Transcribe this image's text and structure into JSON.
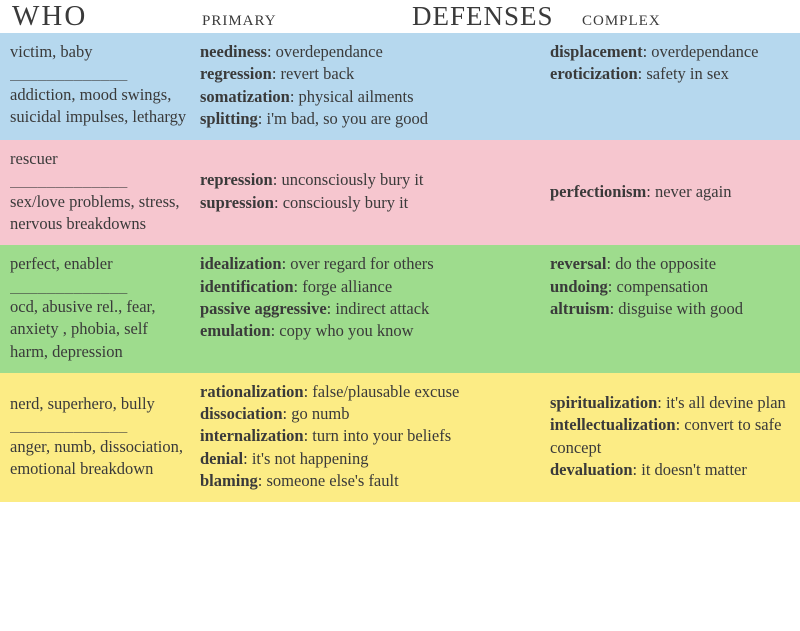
{
  "header": {
    "who": "WHO",
    "primary": "PRIMARY",
    "defenses": "DEFENSES",
    "complex": "COMPLEX"
  },
  "colors": {
    "row1": "#b6d8ee",
    "row2": "#f6c6cf",
    "row3": "#9edc8d",
    "row4": "#fcec85",
    "text": "#3a3a3a"
  },
  "separator": "_____________",
  "rows": [
    {
      "who_top": "victim, baby",
      "who_bot": "addiction, mood swings, suicidal impulses, lethargy",
      "primary": [
        {
          "term": "neediness",
          "desc": "overdependance"
        },
        {
          "term": "regression",
          "desc": " revert back"
        },
        {
          "term": "somatization",
          "desc": " physical ailments"
        },
        {
          "term": "splitting",
          "desc": " i'm bad, so you are good"
        }
      ],
      "complex": [
        {
          "term": "displacement",
          "desc": "overdependance"
        },
        {
          "term": "eroticization",
          "desc": " safety in sex"
        }
      ]
    },
    {
      "who_top": "rescuer",
      "who_bot": "sex/love problems, stress, nervous breakdowns",
      "primary": [
        {
          "term": "repression",
          "desc": "unconsciously bury it"
        },
        {
          "term": "supression",
          "desc": " consciously bury it"
        }
      ],
      "complex": [
        {
          "term": "perfectionism",
          "desc": "never again"
        }
      ]
    },
    {
      "who_top": "perfect, enabler",
      "who_bot": "ocd, abusive rel., fear, anxiety , phobia, self harm, depression",
      "primary": [
        {
          "term": "idealization",
          "desc": "over regard for others"
        },
        {
          "term": "identification",
          "desc": " forge alliance"
        },
        {
          "term": "passive aggressive",
          "desc": " indirect attack"
        },
        {
          "term": "emulation",
          "desc": " copy who you know"
        }
      ],
      "complex": [
        {
          "term": "reversal",
          "desc": "do the opposite"
        },
        {
          "term": "undoing",
          "desc": " compensation"
        },
        {
          "term": "altruism",
          "desc": " disguise with good"
        }
      ]
    },
    {
      "who_top": "nerd, superhero, bully",
      "who_bot": "anger, numb, dissociation, emotional breakdown",
      "primary": [
        {
          "term": "rationalization",
          "desc": "false/plausable excuse"
        },
        {
          "term": "dissociation",
          "desc": " go numb"
        },
        {
          "term": "internalization",
          "desc": " turn into your beliefs"
        },
        {
          "term": "denial",
          "desc": " it's not happening"
        },
        {
          "term": "blaming",
          "desc": " someone else's fault"
        }
      ],
      "complex": [
        {
          "term": "spiritualization",
          "desc": "it's all devine plan"
        },
        {
          "term": "intellectualization",
          "desc": " convert to safe concept"
        },
        {
          "term": "devaluation",
          "desc": " it doesn't matter"
        }
      ]
    }
  ]
}
